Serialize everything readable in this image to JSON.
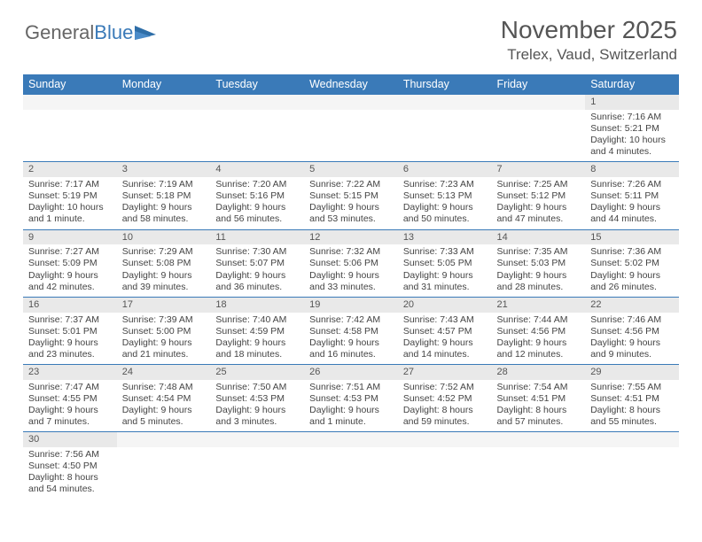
{
  "logo": {
    "text1": "General",
    "text2": "Blue"
  },
  "title": "November 2025",
  "subtitle": "Trelex, Vaud, Switzerland",
  "colors": {
    "header_bg": "#3a7ab8",
    "header_text": "#ffffff",
    "daynum_bg": "#e9e9e9",
    "border": "#3a7ab8",
    "text": "#444444",
    "background": "#ffffff"
  },
  "typography": {
    "title_fontsize": 28,
    "subtitle_fontsize": 17,
    "header_fontsize": 12.5,
    "cell_fontsize": 10.5
  },
  "layout": {
    "columns": 7,
    "weeks": 6,
    "first_day_index": 6
  },
  "day_headers": [
    "Sunday",
    "Monday",
    "Tuesday",
    "Wednesday",
    "Thursday",
    "Friday",
    "Saturday"
  ],
  "days": [
    {
      "n": 1,
      "sunrise": "7:16 AM",
      "sunset": "5:21 PM",
      "daylight": "10 hours and 4 minutes."
    },
    {
      "n": 2,
      "sunrise": "7:17 AM",
      "sunset": "5:19 PM",
      "daylight": "10 hours and 1 minute."
    },
    {
      "n": 3,
      "sunrise": "7:19 AM",
      "sunset": "5:18 PM",
      "daylight": "9 hours and 58 minutes."
    },
    {
      "n": 4,
      "sunrise": "7:20 AM",
      "sunset": "5:16 PM",
      "daylight": "9 hours and 56 minutes."
    },
    {
      "n": 5,
      "sunrise": "7:22 AM",
      "sunset": "5:15 PM",
      "daylight": "9 hours and 53 minutes."
    },
    {
      "n": 6,
      "sunrise": "7:23 AM",
      "sunset": "5:13 PM",
      "daylight": "9 hours and 50 minutes."
    },
    {
      "n": 7,
      "sunrise": "7:25 AM",
      "sunset": "5:12 PM",
      "daylight": "9 hours and 47 minutes."
    },
    {
      "n": 8,
      "sunrise": "7:26 AM",
      "sunset": "5:11 PM",
      "daylight": "9 hours and 44 minutes."
    },
    {
      "n": 9,
      "sunrise": "7:27 AM",
      "sunset": "5:09 PM",
      "daylight": "9 hours and 42 minutes."
    },
    {
      "n": 10,
      "sunrise": "7:29 AM",
      "sunset": "5:08 PM",
      "daylight": "9 hours and 39 minutes."
    },
    {
      "n": 11,
      "sunrise": "7:30 AM",
      "sunset": "5:07 PM",
      "daylight": "9 hours and 36 minutes."
    },
    {
      "n": 12,
      "sunrise": "7:32 AM",
      "sunset": "5:06 PM",
      "daylight": "9 hours and 33 minutes."
    },
    {
      "n": 13,
      "sunrise": "7:33 AM",
      "sunset": "5:05 PM",
      "daylight": "9 hours and 31 minutes."
    },
    {
      "n": 14,
      "sunrise": "7:35 AM",
      "sunset": "5:03 PM",
      "daylight": "9 hours and 28 minutes."
    },
    {
      "n": 15,
      "sunrise": "7:36 AM",
      "sunset": "5:02 PM",
      "daylight": "9 hours and 26 minutes."
    },
    {
      "n": 16,
      "sunrise": "7:37 AM",
      "sunset": "5:01 PM",
      "daylight": "9 hours and 23 minutes."
    },
    {
      "n": 17,
      "sunrise": "7:39 AM",
      "sunset": "5:00 PM",
      "daylight": "9 hours and 21 minutes."
    },
    {
      "n": 18,
      "sunrise": "7:40 AM",
      "sunset": "4:59 PM",
      "daylight": "9 hours and 18 minutes."
    },
    {
      "n": 19,
      "sunrise": "7:42 AM",
      "sunset": "4:58 PM",
      "daylight": "9 hours and 16 minutes."
    },
    {
      "n": 20,
      "sunrise": "7:43 AM",
      "sunset": "4:57 PM",
      "daylight": "9 hours and 14 minutes."
    },
    {
      "n": 21,
      "sunrise": "7:44 AM",
      "sunset": "4:56 PM",
      "daylight": "9 hours and 12 minutes."
    },
    {
      "n": 22,
      "sunrise": "7:46 AM",
      "sunset": "4:56 PM",
      "daylight": "9 hours and 9 minutes."
    },
    {
      "n": 23,
      "sunrise": "7:47 AM",
      "sunset": "4:55 PM",
      "daylight": "9 hours and 7 minutes."
    },
    {
      "n": 24,
      "sunrise": "7:48 AM",
      "sunset": "4:54 PM",
      "daylight": "9 hours and 5 minutes."
    },
    {
      "n": 25,
      "sunrise": "7:50 AM",
      "sunset": "4:53 PM",
      "daylight": "9 hours and 3 minutes."
    },
    {
      "n": 26,
      "sunrise": "7:51 AM",
      "sunset": "4:53 PM",
      "daylight": "9 hours and 1 minute."
    },
    {
      "n": 27,
      "sunrise": "7:52 AM",
      "sunset": "4:52 PM",
      "daylight": "8 hours and 59 minutes."
    },
    {
      "n": 28,
      "sunrise": "7:54 AM",
      "sunset": "4:51 PM",
      "daylight": "8 hours and 57 minutes."
    },
    {
      "n": 29,
      "sunrise": "7:55 AM",
      "sunset": "4:51 PM",
      "daylight": "8 hours and 55 minutes."
    },
    {
      "n": 30,
      "sunrise": "7:56 AM",
      "sunset": "4:50 PM",
      "daylight": "8 hours and 54 minutes."
    }
  ],
  "labels": {
    "sunrise": "Sunrise: ",
    "sunset": "Sunset: ",
    "daylight": "Daylight: "
  }
}
